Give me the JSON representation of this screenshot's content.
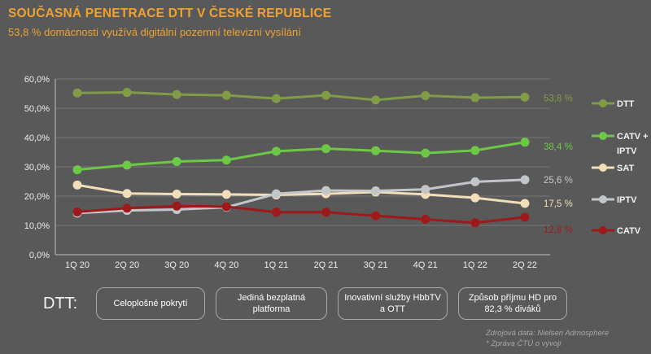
{
  "header": {
    "title": "SOUČASNÁ PENETRACE DTT V ČESKÉ REPUBLICE",
    "subtitle": "53,8 % domácností využívá digitální pozemní televizní vysílání",
    "accent_color": "#EFA22F"
  },
  "chart_data": {
    "type": "line",
    "title": "",
    "xlabel": "",
    "ylabel": "",
    "categories": [
      "1Q 20",
      "2Q 20",
      "3Q 20",
      "4Q 20",
      "1Q 21",
      "2Q 21",
      "3Q 21",
      "4Q 21",
      "1Q 22",
      "2Q 22"
    ],
    "series": [
      {
        "name": "DTT",
        "color": "#819C46",
        "values": [
          55.2,
          55.4,
          54.7,
          54.4,
          53.3,
          54.4,
          52.8,
          54.3,
          53.6,
          53.8
        ],
        "end_label": "53,8 %",
        "label_dy": 5
      },
      {
        "name": "CATV + IPTV",
        "legend_lines": [
          "CATV +",
          "IPTV"
        ],
        "color": "#6CC845",
        "values": [
          29.0,
          30.6,
          31.8,
          32.3,
          35.3,
          36.2,
          35.5,
          34.7,
          35.6,
          38.4
        ],
        "end_label": "38,4 %",
        "label_dy": 9
      },
      {
        "name": "SAT",
        "color": "#F2DEB8",
        "values": [
          23.8,
          20.9,
          20.7,
          20.6,
          20.4,
          20.8,
          21.4,
          20.6,
          19.4,
          17.5
        ],
        "end_label": "17,5 %",
        "label_dy": 4
      },
      {
        "name": "IPTV",
        "color": "#C2C6CA",
        "values": [
          14.2,
          15.1,
          15.4,
          16.2,
          20.8,
          21.9,
          21.8,
          22.3,
          24.9,
          25.6
        ],
        "end_label": "25,6 %",
        "label_dy": 4
      },
      {
        "name": "CATV",
        "color": "#9E1A1A",
        "values": [
          14.6,
          15.9,
          16.6,
          16.4,
          14.5,
          14.5,
          13.3,
          12.1,
          10.9,
          12.8
        ],
        "end_label": "12,8 %",
        "label_dy": 19
      }
    ],
    "ylim": [
      0,
      60
    ],
    "ytick_step": 10,
    "ytick_labels": [
      "0,0%",
      "10,0%",
      "20,0%",
      "30,0%",
      "40,0%",
      "50,0%",
      "60,0%"
    ],
    "grid": true,
    "legend_position": "right"
  },
  "bottom": {
    "label": "DTT:",
    "boxes": [
      "Celoplošné pokrytí",
      "Jediná bezplatná platforma",
      "Inovativní služby HbbTV a OTT",
      "Způsob příjmu HD pro 82,3 % diváků"
    ]
  },
  "footer": {
    "line1": "Zdrojová data: Nielsen Admosphere",
    "line2": "* Zpráva ČTÚ o vývoji"
  }
}
